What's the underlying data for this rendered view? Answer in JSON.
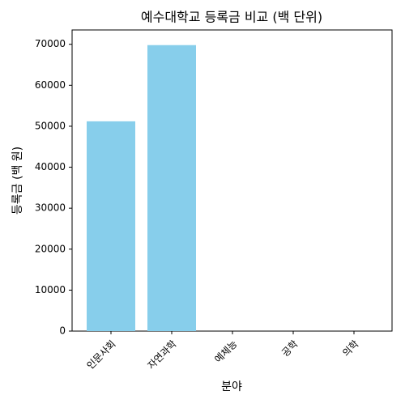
{
  "chart_data": {
    "type": "bar",
    "title": "예수대학교 등록금 비교 (백 단위)",
    "x_label": "분야",
    "y_label": "등록금 (백 원)",
    "categories": [
      "인문사회",
      "자연과학",
      "예체능",
      "공학",
      "의학"
    ],
    "values": [
      51200,
      69800,
      0,
      0,
      0
    ],
    "color": "#87ceeb",
    "ylim": [
      0,
      73500
    ],
    "yticks": [
      0,
      10000,
      20000,
      30000,
      40000,
      50000,
      60000,
      70000
    ],
    "grid": false
  }
}
